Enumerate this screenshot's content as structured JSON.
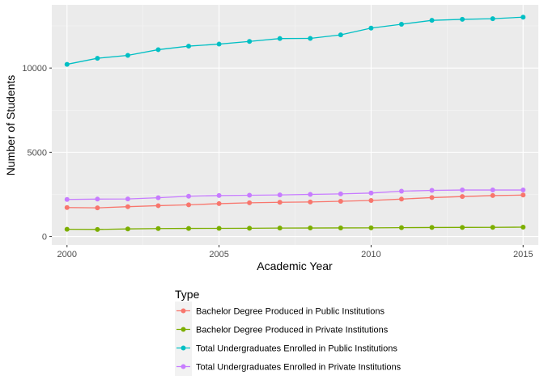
{
  "chart_data": {
    "type": "line",
    "xlabel": "Academic Year",
    "ylabel": "Number of Students",
    "xlim": [
      1999.5,
      2015.5
    ],
    "ylim": [
      -500,
      13750
    ],
    "x_ticks": [
      2000,
      2005,
      2010,
      2015
    ],
    "y_ticks": [
      0,
      5000,
      10000
    ],
    "grid": true,
    "legend": {
      "title": "Type",
      "position": "bottom"
    },
    "x": [
      2000,
      2001,
      2002,
      2003,
      2004,
      2005,
      2006,
      2007,
      2008,
      2009,
      2010,
      2011,
      2012,
      2013,
      2014,
      2015
    ],
    "series": [
      {
        "name": "Bachelor Degree Produced in Public Institutions",
        "color": "#F8766D",
        "values": [
          1720,
          1700,
          1770,
          1830,
          1880,
          1950,
          2000,
          2030,
          2050,
          2090,
          2140,
          2220,
          2310,
          2370,
          2430,
          2460
        ]
      },
      {
        "name": "Bachelor Degree Produced in Private Institutions",
        "color": "#7CAE00",
        "values": [
          430,
          420,
          450,
          470,
          480,
          485,
          490,
          500,
          505,
          510,
          515,
          525,
          535,
          540,
          545,
          555
        ]
      },
      {
        "name": "Total Undergraduates Enrolled in Public Institutions",
        "color": "#00BFC4",
        "values": [
          10220,
          10580,
          10750,
          11090,
          11300,
          11420,
          11580,
          11750,
          11760,
          11970,
          12370,
          12600,
          12830,
          12890,
          12930,
          13020
        ]
      },
      {
        "name": "Total Undergraduates Enrolled in Private Institutions",
        "color": "#C77CFF",
        "values": [
          2200,
          2220,
          2230,
          2300,
          2390,
          2430,
          2450,
          2470,
          2500,
          2530,
          2580,
          2690,
          2740,
          2760,
          2760,
          2760
        ]
      }
    ]
  }
}
